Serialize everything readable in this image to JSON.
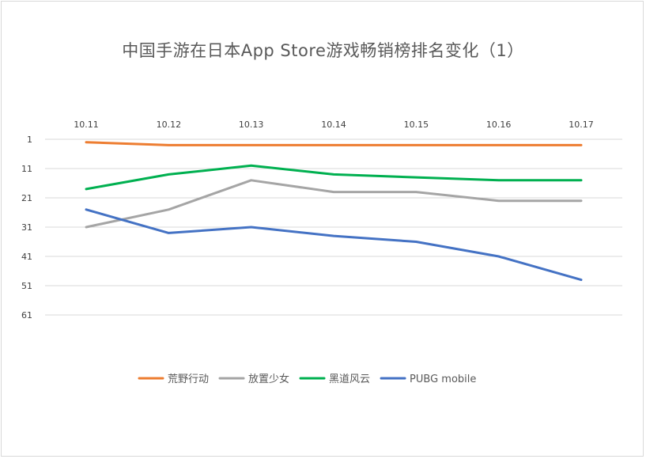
{
  "chart_data": {
    "type": "line",
    "title": "中国手游在日本App Store游戏畅销榜排名变化（1）",
    "xlabel": "",
    "ylabel": "",
    "categories": [
      "10.11",
      "10.12",
      "10.13",
      "10.14",
      "10.15",
      "10.16",
      "10.17"
    ],
    "y_ticks": [
      "1",
      "11",
      "21",
      "31",
      "41",
      "51",
      "61"
    ],
    "y_tick_values": [
      1,
      11,
      21,
      31,
      41,
      51,
      61
    ],
    "ylim": [
      1,
      61
    ],
    "y_reversed": true,
    "x_axis_position": "top",
    "grid": true,
    "legend_position": "bottom",
    "series": [
      {
        "name": "荒野行动",
        "color": "#ED7D31",
        "values": [
          2,
          3,
          3,
          3,
          3,
          3,
          3
        ]
      },
      {
        "name": "放置少女",
        "color": "#A5A5A5",
        "values": [
          31,
          25,
          15,
          19,
          19,
          22,
          22
        ]
      },
      {
        "name": "黑道风云",
        "color": "#00B050",
        "values": [
          18,
          13,
          10,
          13,
          14,
          15,
          15
        ]
      },
      {
        "name": "PUBG mobile",
        "color": "#4472C4",
        "values": [
          25,
          33,
          31,
          34,
          36,
          41,
          49
        ]
      }
    ]
  }
}
